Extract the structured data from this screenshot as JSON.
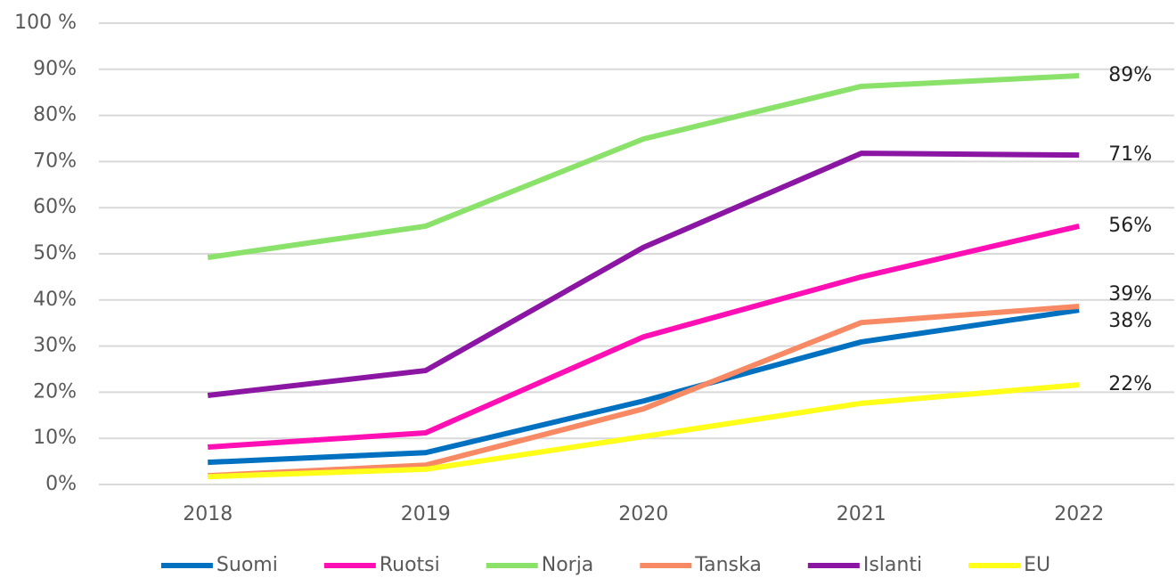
{
  "chart_data": {
    "type": "line",
    "categories": [
      "2018",
      "2019",
      "2020",
      "2021",
      "2022"
    ],
    "series": [
      {
        "name": "Suomi",
        "color": "#0070c0",
        "values": [
          4.8,
          6.9,
          18.1,
          30.9,
          37.8
        ],
        "value_labels": [
          null,
          null,
          null,
          null,
          "38%"
        ]
      },
      {
        "name": "Ruotsi",
        "color": "#ff0fb4",
        "values": [
          8.1,
          11.2,
          32.0,
          45.0,
          56.0
        ],
        "value_labels": [
          null,
          null,
          null,
          null,
          "56%"
        ]
      },
      {
        "name": "Norja",
        "color": "#8ae26a",
        "values": [
          49.2,
          56.0,
          74.9,
          86.3,
          88.6
        ],
        "value_labels": [
          null,
          null,
          null,
          null,
          "89%"
        ]
      },
      {
        "name": "Tanska",
        "color": "#f78a64",
        "values": [
          1.9,
          4.2,
          16.4,
          35.1,
          38.6
        ],
        "value_labels": [
          null,
          null,
          null,
          null,
          "39%"
        ]
      },
      {
        "name": "Islanti",
        "color": "#8b16a3",
        "values": [
          19.3,
          24.7,
          51.4,
          71.8,
          71.4
        ],
        "value_labels": [
          null,
          null,
          null,
          null,
          "71%"
        ]
      },
      {
        "name": "EU",
        "color": "#ffff1a",
        "values": [
          1.7,
          3.3,
          10.4,
          17.6,
          21.6
        ],
        "value_labels": [
          null,
          null,
          null,
          null,
          "22%"
        ]
      }
    ],
    "ylim": [
      0,
      100
    ],
    "yticks": [
      {
        "value": 0,
        "label": "0%"
      },
      {
        "value": 10,
        "label": "10%"
      },
      {
        "value": 20,
        "label": "20%"
      },
      {
        "value": 30,
        "label": "30%"
      },
      {
        "value": 40,
        "label": "40%"
      },
      {
        "value": 50,
        "label": "50%"
      },
      {
        "value": 60,
        "label": "60%"
      },
      {
        "value": 70,
        "label": "70%"
      },
      {
        "value": 80,
        "label": "80%"
      },
      {
        "value": 90,
        "label": "90%"
      },
      {
        "value": 100,
        "label": "100 %"
      }
    ],
    "grid": true,
    "legend": "bottom"
  }
}
